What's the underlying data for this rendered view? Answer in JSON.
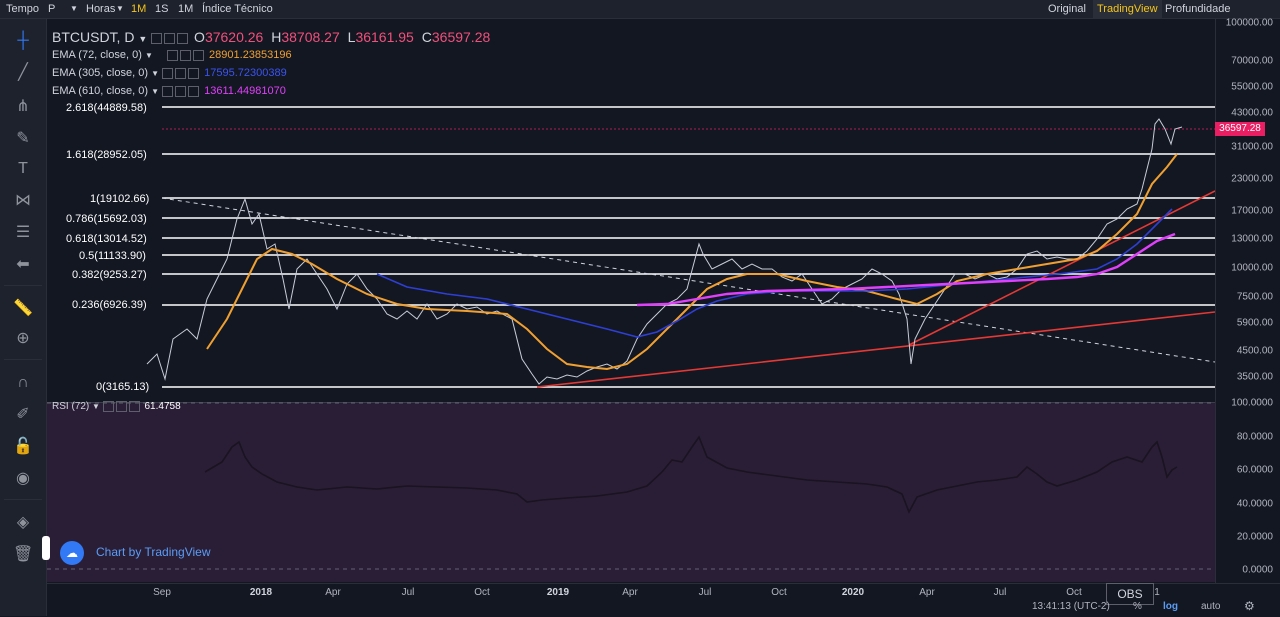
{
  "toolbar": {
    "items": [
      {
        "label": "Tempo"
      },
      {
        "label": "P"
      },
      {
        "label": "Horas"
      },
      {
        "label": "1M"
      },
      {
        "label": "1S"
      },
      {
        "label": "1M"
      },
      {
        "label": "Índice Técnico"
      }
    ],
    "right": [
      {
        "label": "Original"
      },
      {
        "label": "TradingView"
      },
      {
        "label": "Profundidade"
      }
    ]
  },
  "symbol": {
    "name": "BTCUSDT, D",
    "open_label": "O",
    "open": "37620.26",
    "high_label": "H",
    "high": "38708.27",
    "low_label": "L",
    "low": "36161.95",
    "close_label": "C",
    "close": "36597.28"
  },
  "indicators": [
    {
      "label": "EMA (72, close, 0)",
      "value": "28901.23853196",
      "color": "#f0a030"
    },
    {
      "label": "EMA (305, close, 0)",
      "value": "17595.72300389",
      "color": "#2e3fd6"
    },
    {
      "label": "EMA (610, close, 0)",
      "value": "13611.44981070",
      "color": "#e040fb"
    }
  ],
  "fib_levels": [
    {
      "label": "2.618(44889.58)"
    },
    {
      "label": "1.618(28952.05)"
    },
    {
      "label": "1(19102.66)"
    },
    {
      "label": "0.786(15692.03)"
    },
    {
      "label": "0.618(13014.52)"
    },
    {
      "label": "0.5(11133.90)"
    },
    {
      "label": "0.382(9253.27)"
    },
    {
      "label": "0.236(6926.39)"
    },
    {
      "label": "0(3165.13)"
    }
  ],
  "price_axis": [
    "100000.00",
    "70000.00",
    "55000.00",
    "43000.00",
    "31000.00",
    "23000.00",
    "17000.00",
    "13000.00",
    "10000.00",
    "7500.00",
    "5900.00",
    "4500.00",
    "3500.00"
  ],
  "current_price_tag": "36597.28",
  "rsi": {
    "label": "RSI (72)",
    "value": "61.4758"
  },
  "rsi_axis": [
    "100.0000",
    "80.0000",
    "60.0000",
    "40.0000",
    "20.0000",
    "0.0000"
  ],
  "time_axis": [
    "Sep",
    "2018",
    "Apr",
    "Jul",
    "Oct",
    "2019",
    "Apr",
    "Jul",
    "Oct",
    "2020",
    "Apr",
    "Jul",
    "Oct",
    "1"
  ],
  "watermark": "Chart by TradingView",
  "footer": {
    "time": "13:41:13 (UTC-2)",
    "pct": "%",
    "log": "log",
    "auto": "auto",
    "obs": "OBS"
  },
  "colors": {
    "background": "#131722",
    "accent": "#f5c518",
    "rsi_bg": "#2a1e36",
    "price_tag": "#e91e63",
    "trendline": "#e53935"
  }
}
